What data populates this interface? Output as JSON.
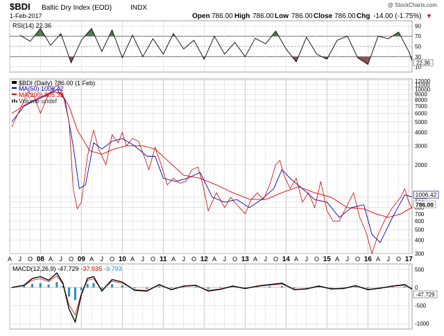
{
  "header": {
    "symbol": "$BDI",
    "name": "Baltic Dry Index (EOD)",
    "exchange": "INDX",
    "date": "1-Feb-2017",
    "credit": "@ StockCharts.com",
    "open_label": "Open",
    "open": "786.00",
    "high_label": "High",
    "high": "786.00",
    "low_label": "Low",
    "low": "786.00",
    "close_label": "Close",
    "close": "786.00",
    "chg_label": "Chg",
    "chg": "-14.00 (-1.75%)",
    "chg_arrow": "▼"
  },
  "colors": {
    "price": "#cc0000",
    "ma50": "#0000aa",
    "ma200": "#dd0000",
    "rsi_over": "#4f7a4f",
    "rsi_under": "#8a5050",
    "macd_hist": "#2f8fb0",
    "macd_line": "#000000",
    "macd_signal": "#cc0000",
    "grid": "#d8d8d8"
  },
  "chart_data": [
    {
      "type": "line",
      "panel": "RSI",
      "legend": "RSI(14) 22.36",
      "last_value_label": "22.36",
      "y_ticks": [
        "90",
        "70",
        "50",
        "30",
        "10"
      ],
      "ylim": [
        0,
        100
      ],
      "overbought": 70,
      "oversold": 30,
      "midline": 50,
      "x": [
        2007.5,
        2007.75,
        2008.0,
        2008.25,
        2008.5,
        2008.75,
        2009.0,
        2009.25,
        2009.5,
        2009.75,
        2010.0,
        2010.25,
        2010.5,
        2010.75,
        2011.0,
        2011.25,
        2011.5,
        2011.75,
        2012.0,
        2012.25,
        2012.5,
        2012.75,
        2013.0,
        2013.25,
        2013.5,
        2013.75,
        2014.0,
        2014.25,
        2014.5,
        2014.75,
        2015.0,
        2015.25,
        2015.5,
        2015.75,
        2016.0,
        2016.25,
        2016.5,
        2016.75,
        2017.0,
        2017.08
      ],
      "values": [
        72,
        60,
        85,
        52,
        75,
        18,
        62,
        85,
        40,
        82,
        28,
        72,
        30,
        65,
        35,
        75,
        45,
        62,
        25,
        70,
        35,
        58,
        30,
        66,
        55,
        80,
        45,
        20,
        68,
        35,
        25,
        62,
        70,
        28,
        15,
        70,
        65,
        78,
        40,
        22
      ]
    },
    {
      "type": "line",
      "panel": "Price",
      "legend": [
        {
          "name": "$BDI (Daily) 786.00 (1 Feb)"
        },
        {
          "name": "MA(50) 1006.42"
        },
        {
          "name": "MA(200) 805.35"
        },
        {
          "name": "Volume undef"
        }
      ],
      "y_scale": "log",
      "y_ticks": [
        "12000",
        "11000",
        "10000",
        "9000",
        "8000",
        "7000",
        "6000",
        "5000",
        "4000",
        "3000",
        "2000",
        "1000",
        "900",
        "800",
        "700",
        "600",
        "500",
        "400",
        "300"
      ],
      "ylim": [
        300,
        12500
      ],
      "ma50_label": "1006.42",
      "close_label": "786.00",
      "x_ticks": [
        "A",
        "J",
        "O",
        "08",
        "A",
        "J",
        "O",
        "09",
        "A",
        "J",
        "O",
        "10",
        "A",
        "J",
        "O",
        "11",
        "A",
        "J",
        "O",
        "12",
        "A",
        "J",
        "O",
        "13",
        "A",
        "J",
        "O",
        "14",
        "A",
        "J",
        "O",
        "15",
        "A",
        "J",
        "O",
        "16",
        "A",
        "J",
        "O",
        "17"
      ],
      "xlim": [
        2007.25,
        2017.08
      ],
      "series": [
        {
          "key": "price",
          "x": [
            2007.3,
            2007.5,
            2007.7,
            2007.85,
            2008.0,
            2008.2,
            2008.35,
            2008.42,
            2008.55,
            2008.7,
            2008.8,
            2008.9,
            2009.0,
            2009.15,
            2009.3,
            2009.42,
            2009.6,
            2009.75,
            2009.9,
            2010.0,
            2010.1,
            2010.25,
            2010.4,
            2010.55,
            2010.65,
            2010.8,
            2010.95,
            2011.1,
            2011.25,
            2011.4,
            2011.55,
            2011.7,
            2011.85,
            2011.95,
            2012.1,
            2012.3,
            2012.5,
            2012.65,
            2012.8,
            2013.0,
            2013.15,
            2013.3,
            2013.45,
            2013.6,
            2013.75,
            2013.85,
            2013.95,
            2014.1,
            2014.25,
            2014.4,
            2014.55,
            2014.7,
            2014.85,
            2015.0,
            2015.15,
            2015.3,
            2015.5,
            2015.65,
            2015.8,
            2015.95,
            2016.1,
            2016.25,
            2016.4,
            2016.6,
            2016.8,
            2016.9,
            2017.0,
            2017.08
          ],
          "values": [
            4500,
            6500,
            9500,
            8500,
            6000,
            9000,
            10500,
            11000,
            9000,
            5000,
            1200,
            780,
            900,
            2400,
            4200,
            2800,
            2000,
            3800,
            3200,
            4000,
            3000,
            3500,
            3300,
            2300,
            1800,
            2900,
            2000,
            1300,
            1500,
            1350,
            1400,
            1800,
            1900,
            1400,
            750,
            1100,
            800,
            1000,
            850,
            700,
            950,
            1100,
            950,
            1300,
            2000,
            2200,
            1600,
            1200,
            1500,
            900,
            1100,
            800,
            1400,
            750,
            600,
            600,
            850,
            1100,
            650,
            480,
            300,
            450,
            600,
            800,
            1000,
            1200,
            900,
            786
          ]
        },
        {
          "key": "ma50",
          "x": [
            2007.3,
            2007.6,
            2007.9,
            2008.2,
            2008.4,
            2008.6,
            2008.8,
            2008.95,
            2009.1,
            2009.3,
            2009.5,
            2009.75,
            2010.0,
            2010.3,
            2010.6,
            2010.8,
            2011.0,
            2011.3,
            2011.6,
            2011.9,
            2012.2,
            2012.5,
            2012.8,
            2013.1,
            2013.4,
            2013.7,
            2013.9,
            2014.1,
            2014.4,
            2014.7,
            2015.0,
            2015.3,
            2015.6,
            2015.9,
            2016.1,
            2016.3,
            2016.6,
            2016.9,
            2017.08
          ],
          "values": [
            5000,
            7000,
            8000,
            9000,
            10000,
            8000,
            3000,
            1200,
            1300,
            3200,
            2800,
            3300,
            3500,
            3000,
            2400,
            2400,
            1500,
            1400,
            1500,
            1700,
            1000,
            900,
            950,
            800,
            950,
            1200,
            1800,
            1500,
            1200,
            950,
            900,
            650,
            800,
            850,
            450,
            380,
            650,
            1050,
            1006.42
          ]
        },
        {
          "key": "ma200",
          "x": [
            2007.3,
            2007.7,
            2008.0,
            2008.3,
            2008.5,
            2008.7,
            2008.9,
            2009.2,
            2009.5,
            2009.8,
            2010.1,
            2010.5,
            2010.8,
            2011.1,
            2011.5,
            2011.9,
            2012.3,
            2012.7,
            2013.1,
            2013.5,
            2013.9,
            2014.3,
            2014.7,
            2015.1,
            2015.5,
            2015.9,
            2016.2,
            2016.5,
            2016.8,
            2017.08
          ],
          "values": [
            6000,
            7500,
            8500,
            9500,
            9300,
            7000,
            4200,
            2700,
            2500,
            2800,
            3000,
            3000,
            2800,
            2200,
            1600,
            1500,
            1300,
            1100,
            960,
            950,
            1100,
            1250,
            1100,
            1000,
            800,
            780,
            700,
            650,
            700,
            805.35
          ]
        }
      ]
    },
    {
      "type": "line",
      "panel": "MACD",
      "legend": "MACD(12,26,9) -47.729, -37.935, -9.793",
      "macd_legend": "MACD(12,26,9) -47.729",
      "signal_legend": "-37.935",
      "hist_legend": "-9.793",
      "last_value_label": "-47.729",
      "y_ticks": [
        "500",
        "0",
        "-500",
        "-1000"
      ],
      "ylim": [
        -1150,
        650
      ],
      "x": [
        2007.3,
        2007.6,
        2007.8,
        2008.0,
        2008.2,
        2008.4,
        2008.55,
        2008.7,
        2008.85,
        2009.0,
        2009.15,
        2009.3,
        2009.5,
        2009.75,
        2010.0,
        2010.3,
        2010.6,
        2010.9,
        2011.2,
        2011.5,
        2011.8,
        2012.1,
        2012.4,
        2012.7,
        2013.0,
        2013.3,
        2013.6,
        2013.9,
        2014.2,
        2014.5,
        2014.8,
        2015.1,
        2015.4,
        2015.7,
        2016.0,
        2016.3,
        2016.6,
        2016.9,
        2017.08
      ],
      "values": [
        0,
        60,
        250,
        300,
        200,
        400,
        120,
        -600,
        -950,
        -200,
        250,
        300,
        -100,
        220,
        150,
        -80,
        -100,
        80,
        -60,
        40,
        60,
        -100,
        -50,
        40,
        -30,
        40,
        80,
        120,
        -60,
        -40,
        40,
        -40,
        -30,
        50,
        -60,
        -20,
        40,
        80,
        -47.729
      ],
      "hist": [
        0,
        40,
        100,
        120,
        80,
        150,
        40,
        -250,
        -350,
        -80,
        100,
        120,
        -40,
        90,
        60,
        -30,
        -40,
        30,
        -20,
        15,
        25,
        -40,
        -20,
        15,
        -10,
        15,
        30,
        45,
        -25,
        -15,
        15,
        -15,
        -10,
        20,
        -25,
        -8,
        15,
        30,
        -9.793
      ]
    }
  ]
}
